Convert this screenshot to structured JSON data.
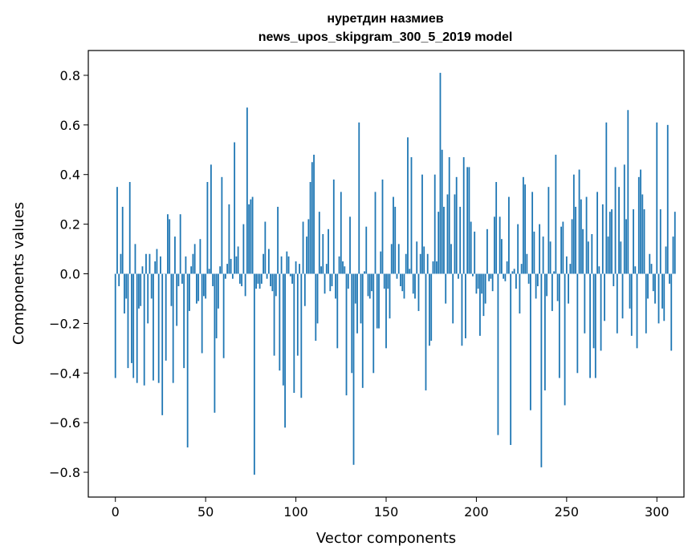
{
  "chart_data": {
    "type": "bar",
    "title_line1": "нуретдин назмиев",
    "title_line2": "news_upos_skipgram_300_5_2019 model",
    "xlabel": "Vector components",
    "ylabel": "Components values",
    "xlim": [
      -15,
      315
    ],
    "ylim": [
      -0.9,
      0.9
    ],
    "xticks": [
      0,
      50,
      100,
      150,
      200,
      250,
      300
    ],
    "xtick_labels": [
      "0",
      "50",
      "100",
      "150",
      "200",
      "250",
      "300"
    ],
    "yticks": [
      -0.8,
      -0.6,
      -0.4,
      -0.2,
      0.0,
      0.2,
      0.4,
      0.6,
      0.8
    ],
    "ytick_labels": [
      "−0.8",
      "−0.6",
      "−0.4",
      "−0.2",
      "0.0",
      "0.2",
      "0.4",
      "0.6",
      "0.8"
    ],
    "bar_color": "#1f77b4",
    "series": [
      {
        "name": "components",
        "values": [
          -0.42,
          0.35,
          -0.05,
          0.08,
          0.27,
          -0.16,
          -0.1,
          -0.38,
          0.37,
          -0.36,
          -0.42,
          0.12,
          -0.44,
          -0.14,
          -0.13,
          0.03,
          -0.45,
          0.08,
          -0.2,
          0.08,
          -0.1,
          -0.43,
          0.05,
          0.1,
          -0.44,
          0.07,
          -0.57,
          0.0,
          -0.35,
          0.24,
          0.22,
          -0.13,
          -0.44,
          0.15,
          -0.21,
          -0.05,
          0.24,
          -0.04,
          -0.38,
          0.07,
          -0.7,
          -0.15,
          0.03,
          0.08,
          0.12,
          -0.12,
          -0.11,
          0.14,
          -0.32,
          -0.09,
          -0.1,
          0.37,
          0.02,
          0.44,
          -0.05,
          -0.56,
          -0.26,
          -0.14,
          0.03,
          0.39,
          -0.34,
          -0.02,
          0.04,
          0.28,
          0.06,
          -0.02,
          0.53,
          0.07,
          0.11,
          -0.04,
          -0.05,
          0.2,
          -0.09,
          0.67,
          0.28,
          0.3,
          0.31,
          -0.81,
          -0.06,
          -0.04,
          -0.06,
          -0.04,
          0.08,
          0.21,
          -0.02,
          0.1,
          -0.05,
          -0.07,
          -0.33,
          -0.09,
          0.27,
          -0.39,
          0.07,
          -0.45,
          -0.62,
          0.09,
          0.07,
          -0.01,
          -0.04,
          -0.48,
          0.05,
          -0.33,
          0.04,
          -0.5,
          0.21,
          -0.13,
          0.15,
          0.22,
          0.37,
          0.45,
          0.48,
          -0.27,
          -0.2,
          0.25,
          0.03,
          0.16,
          -0.08,
          0.04,
          0.18,
          -0.07,
          -0.05,
          0.38,
          -0.1,
          -0.3,
          0.07,
          0.33,
          0.05,
          0.03,
          -0.49,
          -0.06,
          0.23,
          -0.4,
          -0.77,
          -0.12,
          -0.24,
          0.61,
          -0.2,
          -0.46,
          0.01,
          0.19,
          -0.09,
          -0.1,
          -0.07,
          -0.4,
          0.33,
          -0.22,
          -0.22,
          0.09,
          0.38,
          -0.06,
          -0.3,
          -0.06,
          -0.18,
          0.12,
          0.31,
          0.27,
          -0.02,
          0.12,
          -0.05,
          -0.07,
          -0.1,
          0.08,
          0.55,
          0.02,
          0.47,
          -0.08,
          -0.1,
          0.13,
          -0.15,
          0.08,
          0.4,
          0.11,
          -0.47,
          0.08,
          -0.29,
          -0.27,
          0.05,
          0.4,
          0.05,
          0.25,
          0.81,
          0.5,
          0.27,
          -0.12,
          0.32,
          0.47,
          0.12,
          -0.2,
          0.32,
          0.39,
          -0.02,
          0.27,
          -0.29,
          0.47,
          -0.26,
          0.43,
          0.43,
          0.21,
          -0.01,
          0.17,
          -0.08,
          -0.06,
          -0.25,
          -0.08,
          -0.17,
          -0.12,
          0.18,
          -0.03,
          -0.02,
          -0.07,
          0.23,
          0.37,
          -0.65,
          0.23,
          0.14,
          -0.02,
          -0.03,
          0.05,
          0.31,
          -0.69,
          0.01,
          0.02,
          -0.06,
          0.2,
          -0.16,
          0.04,
          0.39,
          0.36,
          0.08,
          -0.04,
          -0.55,
          0.33,
          0.17,
          -0.1,
          -0.05,
          0.2,
          -0.78,
          0.15,
          -0.47,
          -0.09,
          0.35,
          0.13,
          -0.15,
          0.01,
          0.48,
          -0.11,
          -0.42,
          0.19,
          0.21,
          -0.53,
          0.07,
          -0.12,
          0.04,
          0.22,
          0.4,
          0.27,
          -0.4,
          0.42,
          0.3,
          0.18,
          -0.24,
          0.31,
          0.13,
          -0.42,
          0.16,
          -0.3,
          -0.42,
          0.33,
          0.03,
          -0.31,
          0.28,
          -0.19,
          0.61,
          0.15,
          0.25,
          0.26,
          -0.05,
          0.43,
          -0.24,
          0.35,
          0.13,
          -0.18,
          0.44,
          0.22,
          0.66,
          -0.14,
          -0.25,
          0.26,
          0.03,
          -0.3,
          0.39,
          0.42,
          0.32,
          0.26,
          -0.24,
          -0.1,
          0.08,
          0.04,
          -0.07,
          -0.12,
          0.61,
          -0.2,
          0.26,
          -0.14,
          -0.19,
          0.11,
          0.6,
          -0.04,
          -0.31,
          0.15,
          0.25
        ]
      }
    ]
  }
}
